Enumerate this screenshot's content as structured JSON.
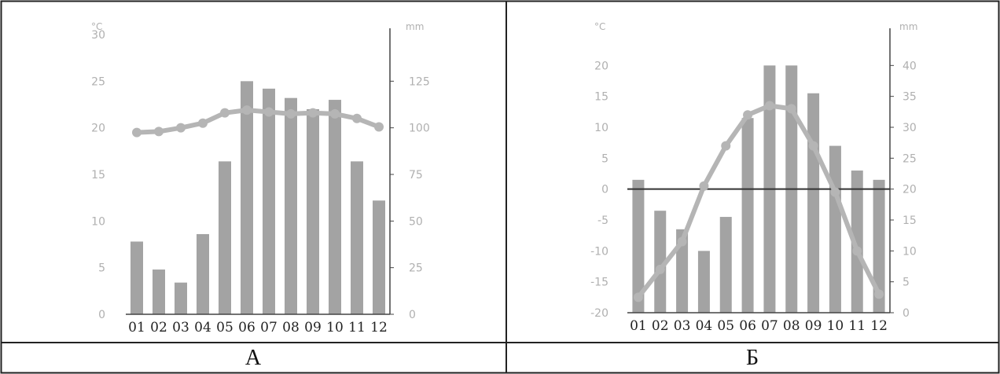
{
  "colors": {
    "border": "#222222",
    "bar": "#a3a3a3",
    "temp_line": "#b5b5b5",
    "axis": "#444444",
    "tick_text": "#b0b0b0",
    "month_text": "#222222",
    "zero_line": "#333333"
  },
  "chart_data": [
    {
      "type": "bar+line",
      "panel_label": "А",
      "temp_unit": "°C",
      "precip_unit": "mm",
      "categories": [
        "01",
        "02",
        "03",
        "04",
        "05",
        "06",
        "07",
        "08",
        "09",
        "10",
        "11",
        "12"
      ],
      "temp_ylim": [
        0,
        30
      ],
      "temp_ticks": [
        0,
        5,
        10,
        15,
        20,
        25,
        30
      ],
      "precip_ylim": [
        0,
        150
      ],
      "precip_ticks": [
        0,
        25,
        50,
        75,
        100,
        125
      ],
      "precipitation": [
        39,
        24,
        17,
        43,
        82,
        125,
        121,
        116,
        110,
        115,
        82,
        61
      ],
      "temperature": [
        19.5,
        19.6,
        20.0,
        20.5,
        21.6,
        21.9,
        21.7,
        21.5,
        21.6,
        21.5,
        21.0,
        20.1
      ],
      "zero_line": false
    },
    {
      "type": "bar+line",
      "panel_label": "Б",
      "temp_unit": "°C",
      "precip_unit": "mm",
      "categories": [
        "01",
        "02",
        "03",
        "04",
        "05",
        "06",
        "07",
        "08",
        "09",
        "10",
        "11",
        "12"
      ],
      "temp_ylim": [
        -20,
        25
      ],
      "temp_ticks": [
        -20,
        -15,
        -10,
        -5,
        0,
        5,
        10,
        15,
        20
      ],
      "precip_ylim": [
        0,
        45
      ],
      "precip_ticks": [
        0,
        5,
        10,
        15,
        20,
        25,
        30,
        35,
        40
      ],
      "precipitation": [
        21.5,
        16.5,
        13.5,
        10,
        15.5,
        31.5,
        40,
        40,
        35.5,
        27,
        23,
        21.5
      ],
      "temperature": [
        -17.5,
        -13,
        -8.5,
        0.5,
        7,
        12,
        13.5,
        13,
        7,
        -0.5,
        -10,
        -17
      ],
      "zero_line": true
    }
  ]
}
